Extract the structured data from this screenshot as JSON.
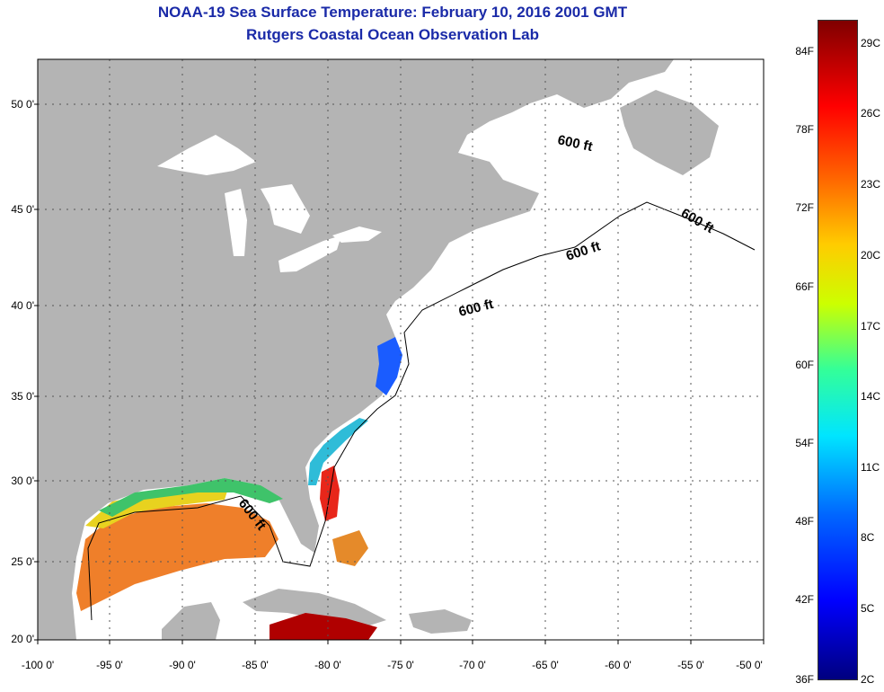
{
  "title_line1": "NOAA-19 Sea Surface Temperature:  February 10, 2016 2001 GMT",
  "title_line2": "Rutgers Coastal Ocean Observation Lab",
  "lat_labels": [
    "50 0'",
    "45 0'",
    "40 0'",
    "35 0'",
    "30 0'",
    "25 0'",
    "20 0'"
  ],
  "lon_labels": [
    "-100 0'",
    "-95 0'",
    "-90 0'",
    "-85 0'",
    "-80 0'",
    "-75 0'",
    "-70 0'",
    "-65 0'",
    "-60 0'",
    "-55 0'",
    "-50 0'"
  ],
  "isobath_label": "600 ft",
  "colorbar": {
    "fahrenheit": [
      "84F",
      "78F",
      "72F",
      "66F",
      "60F",
      "54F",
      "48F",
      "42F",
      "36F"
    ],
    "celsius": [
      "29C",
      "26C",
      "23C",
      "20C",
      "17C",
      "14C",
      "11C",
      "8C",
      "5C",
      "2C"
    ]
  },
  "colors": {
    "land": "#b4b4b4",
    "ocean_nodata": "#ffffff",
    "title": "#1a2aa8",
    "grid": "#555555"
  }
}
